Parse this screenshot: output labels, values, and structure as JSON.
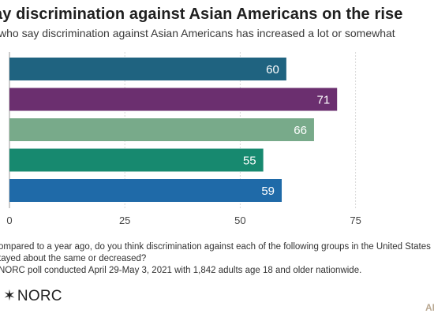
{
  "header": {
    "title": "ay discrimination against Asian Americans on the rise",
    "subtitle": "who say discrimination against Asian Americans has increased a lot or somewhat"
  },
  "footer": {
    "question_line_1": "ompared to a year ago, do you think discrimination against each of the following groups in the United States",
    "question_line_2": "tayed about the same or decreased?",
    "source": "NORC poll conducted April 29-May 3, 2021 with 1,842 adults age 18 and older nationwide.",
    "logo_symbol": "✶",
    "logo_text": "NORC",
    "ap_text": "AI"
  },
  "chart_data": {
    "type": "bar",
    "orientation": "horizontal",
    "categories": [
      "",
      "",
      "",
      "",
      ""
    ],
    "values": [
      60,
      71,
      66,
      55,
      59
    ],
    "value_labels": [
      "60",
      "71",
      "66",
      "55",
      "59"
    ],
    "colors": [
      "#1f6380",
      "#6b2f6f",
      "#78aa8a",
      "#17896f",
      "#1f6aa8"
    ],
    "x_ticks": [
      0,
      25,
      50,
      75
    ],
    "x_tick_labels": [
      "0",
      "25",
      "50",
      "75"
    ],
    "xlim": [
      0,
      92
    ],
    "grid": true,
    "legend": "none",
    "title": "ay discrimination against Asian Americans on the rise",
    "subtitle": "who say discrimination against Asian Americans has increased a lot or somewhat",
    "xlabel": "",
    "ylabel": ""
  }
}
